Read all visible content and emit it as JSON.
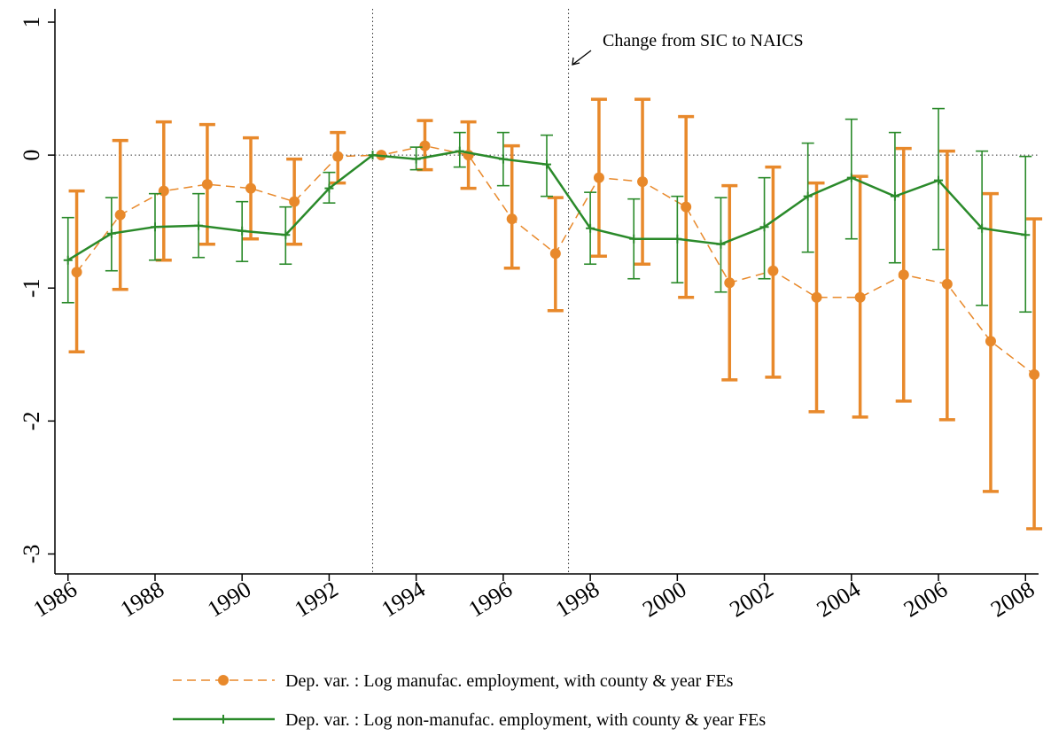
{
  "chart_data": {
    "type": "line",
    "annotation": "Change from SIC to NAICS",
    "xlim": [
      1985.7,
      2008.3
    ],
    "xticks": [
      1986,
      1988,
      1990,
      1992,
      1994,
      1996,
      1998,
      2000,
      2002,
      2004,
      2006,
      2008
    ],
    "ylim": [
      -3.15,
      1.1
    ],
    "yticks": [
      -3,
      -2,
      -1,
      0,
      1
    ],
    "vlines": [
      1993,
      1997.5
    ],
    "hline": 0,
    "series": [
      {
        "name": "Dep. var. : Log manufac. employment, with county & year FEs",
        "color": "#e8892b",
        "dash": true,
        "marker": "circle",
        "x": [
          1986.2,
          1987.2,
          1988.2,
          1989.2,
          1990.2,
          1991.2,
          1992.2,
          1993.2,
          1994.2,
          1995.2,
          1996.2,
          1997.2,
          1998.2,
          1999.2,
          2000.2,
          2001.2,
          2002.2,
          2003.2,
          2004.2,
          2005.2,
          2006.2,
          2007.2,
          2008.2
        ],
        "values": [
          -0.88,
          -0.45,
          -0.27,
          -0.22,
          -0.25,
          -0.35,
          -0.01,
          0,
          0.07,
          0,
          -0.48,
          -0.74,
          -0.17,
          -0.2,
          -0.39,
          -0.96,
          -0.87,
          -1.07,
          -1.07,
          -0.9,
          -0.97,
          -1.4,
          -1.65
        ],
        "upper": [
          -0.27,
          0.11,
          0.25,
          0.23,
          0.13,
          -0.03,
          0.17,
          null,
          0.26,
          0.25,
          0.07,
          -0.32,
          0.42,
          0.42,
          0.29,
          -0.23,
          -0.09,
          -0.21,
          -0.16,
          0.05,
          0.03,
          -0.29,
          -0.48
        ],
        "lower": [
          -1.48,
          -1.01,
          -0.79,
          -0.67,
          -0.63,
          -0.67,
          -0.21,
          null,
          -0.11,
          -0.25,
          -0.85,
          -1.17,
          -0.76,
          -0.82,
          -1.07,
          -1.69,
          -1.67,
          -1.93,
          -1.97,
          -1.85,
          -1.99,
          -2.53,
          -2.81
        ]
      },
      {
        "name": "Dep. var. : Log non-manufac. employment, with county & year FEs",
        "color": "#2a8a2a",
        "dash": false,
        "marker": "plus",
        "x": [
          1986,
          1987,
          1988,
          1989,
          1990,
          1991,
          1992,
          1993,
          1994,
          1995,
          1996,
          1997,
          1998,
          1999,
          2000,
          2001,
          2002,
          2003,
          2004,
          2005,
          2006,
          2007,
          2008
        ],
        "values": [
          -0.79,
          -0.59,
          -0.54,
          -0.53,
          -0.57,
          -0.6,
          -0.25,
          0,
          -0.03,
          0.03,
          -0.03,
          -0.07,
          -0.55,
          -0.63,
          -0.63,
          -0.67,
          -0.54,
          -0.31,
          -0.17,
          -0.31,
          -0.19,
          -0.55,
          -0.6
        ],
        "upper": [
          -0.47,
          -0.32,
          -0.29,
          -0.29,
          -0.35,
          -0.39,
          -0.13,
          null,
          0.06,
          0.17,
          0.17,
          0.15,
          -0.28,
          -0.33,
          -0.31,
          -0.32,
          -0.17,
          0.09,
          0.27,
          0.17,
          0.35,
          0.03,
          -0.01
        ],
        "lower": [
          -1.11,
          -0.87,
          -0.79,
          -0.77,
          -0.8,
          -0.82,
          -0.36,
          null,
          -0.11,
          -0.09,
          -0.23,
          -0.31,
          -0.82,
          -0.93,
          -0.96,
          -1.03,
          -0.93,
          -0.73,
          -0.63,
          -0.81,
          -0.71,
          -1.13,
          -1.18
        ]
      }
    ]
  }
}
